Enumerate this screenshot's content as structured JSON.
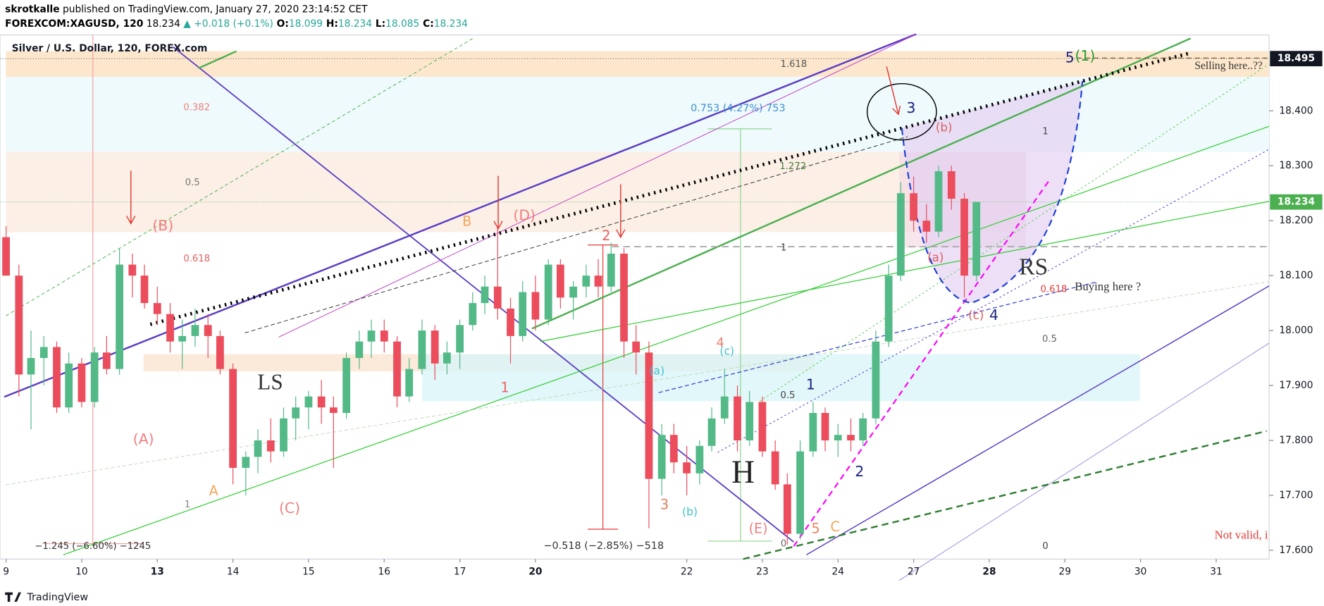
{
  "header": {
    "author": "skrotkalle",
    "published": " published on TradingView.com, January 27, 2020 23:14:52 CET",
    "symbol": "FOREXCOM:XAGUSD, 120",
    "last": " 18.234",
    "change": " ▲ +0.018 (+0.1%)",
    "ohlc": [
      {
        "label": " O:",
        "value": "18.099"
      },
      {
        "label": " H:",
        "value": "18.234"
      },
      {
        "label": " L:",
        "value": "18.085"
      },
      {
        "label": " C:",
        "value": "18.234"
      }
    ]
  },
  "chart_data": {
    "type": "candlestick",
    "title": "Silver / U.S. Dollar, 120, FOREX.com",
    "up_color": "#53b987",
    "down_color": "#eb4d5c",
    "x": [
      0,
      0.17,
      0.33,
      0.5,
      0.67,
      0.83,
      1,
      1.17,
      1.33,
      1.5,
      1.67,
      1.83,
      2,
      2.17,
      2.33,
      2.5,
      2.67,
      2.83,
      3,
      3.17,
      3.33,
      3.5,
      3.67,
      3.83,
      4,
      4.17,
      4.33,
      4.5,
      4.67,
      4.83,
      5,
      5.17,
      5.33,
      5.5,
      5.67,
      5.83,
      6,
      6.17,
      6.33,
      6.5,
      6.67,
      6.83,
      7,
      7.17,
      7.33,
      7.5,
      7.67,
      7.83,
      8,
      8.17,
      8.33,
      8.5,
      8.67,
      8.83,
      9,
      9.17,
      9.33,
      9.5,
      9.67,
      9.83,
      10,
      10.17,
      10.33,
      10.5,
      10.67,
      10.83,
      11,
      11.17,
      11.33,
      11.5,
      11.67,
      11.83,
      12,
      12.17,
      12.33,
      12.5,
      12.67,
      12.83
    ],
    "open": [
      18.17,
      18.1,
      17.92,
      17.95,
      17.97,
      17.86,
      17.94,
      17.87,
      17.96,
      17.93,
      18.12,
      18.1,
      18.05,
      18.03,
      17.98,
      17.99,
      18.01,
      17.99,
      17.93,
      17.75,
      17.77,
      17.8,
      17.78,
      17.84,
      17.86,
      17.88,
      17.86,
      17.85,
      17.95,
      17.98,
      18.0,
      17.98,
      17.88,
      17.93,
      18.0,
      17.94,
      17.96,
      18.01,
      18.05,
      18.08,
      18.04,
      17.99,
      18.07,
      18.02,
      18.12,
      18.06,
      18.08,
      18.1,
      18.08,
      18.14,
      17.98,
      17.96,
      17.73,
      17.81,
      17.76,
      17.74,
      17.79,
      17.84,
      17.88,
      17.8,
      17.87,
      17.78,
      17.72,
      17.63,
      17.78,
      17.85,
      17.8,
      17.81,
      17.8,
      17.84,
      17.98,
      18.1,
      18.25,
      18.2,
      18.18,
      18.29,
      18.24,
      18.1
    ],
    "high": [
      18.19,
      18.12,
      18.0,
      17.99,
      17.98,
      17.96,
      17.95,
      17.97,
      17.99,
      18.15,
      18.14,
      18.12,
      18.08,
      18.05,
      18.02,
      18.04,
      18.03,
      18.0,
      17.94,
      17.78,
      17.82,
      17.84,
      17.86,
      17.88,
      17.89,
      17.91,
      17.88,
      17.96,
      18.0,
      18.02,
      18.02,
      17.99,
      17.95,
      18.02,
      18.01,
      17.98,
      18.02,
      18.07,
      18.1,
      18.19,
      18.06,
      18.09,
      18.1,
      18.13,
      18.13,
      18.09,
      18.12,
      18.13,
      18.16,
      18.15,
      18.01,
      17.98,
      17.83,
      17.83,
      17.79,
      17.8,
      17.86,
      17.93,
      17.9,
      17.89,
      17.88,
      17.8,
      17.74,
      17.8,
      17.87,
      17.86,
      17.83,
      17.84,
      17.85,
      18.0,
      18.12,
      18.27,
      18.28,
      18.23,
      18.3,
      18.3,
      18.25,
      18.234
    ],
    "low": [
      18.1,
      17.88,
      17.82,
      17.9,
      17.85,
      17.85,
      17.86,
      17.86,
      17.92,
      17.92,
      18.06,
      18.04,
      18.01,
      17.96,
      17.93,
      17.97,
      17.95,
      17.92,
      17.72,
      17.7,
      17.74,
      17.76,
      17.77,
      17.8,
      17.82,
      17.83,
      17.75,
      17.84,
      17.93,
      17.95,
      17.96,
      17.86,
      17.87,
      17.92,
      17.91,
      17.92,
      17.93,
      18.0,
      18.03,
      18.02,
      17.94,
      17.98,
      18.0,
      18.01,
      18.04,
      18.02,
      18.06,
      18.06,
      18.07,
      17.95,
      17.92,
      17.64,
      17.7,
      17.74,
      17.7,
      17.72,
      17.78,
      17.83,
      17.78,
      17.79,
      17.77,
      17.71,
      17.61,
      17.62,
      17.77,
      17.78,
      17.77,
      17.78,
      17.79,
      17.83,
      17.97,
      18.09,
      18.18,
      18.16,
      18.17,
      18.22,
      18.06,
      18.09
    ],
    "close": [
      18.1,
      17.92,
      17.95,
      17.97,
      17.86,
      17.94,
      17.87,
      17.96,
      17.93,
      18.12,
      18.1,
      18.05,
      18.03,
      17.98,
      17.99,
      18.01,
      17.99,
      17.93,
      17.75,
      17.77,
      17.8,
      17.78,
      17.84,
      17.86,
      17.88,
      17.86,
      17.85,
      17.95,
      17.98,
      18.0,
      17.98,
      17.88,
      17.93,
      18.0,
      17.94,
      17.96,
      18.01,
      18.05,
      18.08,
      18.04,
      17.99,
      18.07,
      18.02,
      18.12,
      18.06,
      18.08,
      18.1,
      18.08,
      18.14,
      17.98,
      17.96,
      17.73,
      17.81,
      17.76,
      17.74,
      17.79,
      17.84,
      17.88,
      17.8,
      17.87,
      17.78,
      17.72,
      17.63,
      17.78,
      17.85,
      17.8,
      17.81,
      17.8,
      17.84,
      17.98,
      18.1,
      18.25,
      18.2,
      18.18,
      18.29,
      18.24,
      18.1,
      18.234
    ],
    "xlim": [
      -0.08,
      16.7
    ],
    "xticks": [
      {
        "value": 0,
        "label": "9"
      },
      {
        "value": 1,
        "label": "10"
      },
      {
        "value": 2,
        "label": "13"
      },
      {
        "value": 3,
        "label": "14"
      },
      {
        "value": 4,
        "label": "15"
      },
      {
        "value": 5,
        "label": "16"
      },
      {
        "value": 6,
        "label": "17"
      },
      {
        "value": 7,
        "label": "20"
      },
      {
        "value": 9,
        "label": "22"
      },
      {
        "value": 10,
        "label": "23"
      },
      {
        "value": 11,
        "label": "24"
      },
      {
        "value": 12,
        "label": "27"
      },
      {
        "value": 13,
        "label": "28"
      },
      {
        "value": 14,
        "label": "29"
      },
      {
        "value": 15,
        "label": "30"
      },
      {
        "value": 16,
        "label": "31"
      }
    ],
    "ylim": [
      17.584,
      18.538
    ],
    "yticks": [
      {
        "value": 17.6,
        "label": "17.600"
      },
      {
        "value": 17.7,
        "label": "17.700"
      },
      {
        "value": 17.8,
        "label": "17.800"
      },
      {
        "value": 17.9,
        "label": "17.900"
      },
      {
        "value": 18,
        "label": "18.000"
      },
      {
        "value": 18.1,
        "label": "18.100"
      },
      {
        "value": 18.2,
        "label": "18.200"
      },
      {
        "value": 18.3,
        "label": "18.300"
      },
      {
        "value": 18.4,
        "label": "18.400"
      }
    ],
    "price_tags": [
      {
        "value": 18.495,
        "label": "18.495",
        "color": "#131722"
      },
      {
        "value": 18.234,
        "label": "18.234",
        "color": "#4caf50"
      }
    ]
  },
  "annotations": [
    "(B)",
    "(D)",
    "B",
    "2",
    "LS",
    "1",
    "(A)",
    "A",
    "(C)",
    "H",
    "4",
    "(c)",
    "(a)",
    "(b)",
    "3",
    "(E)",
    "5",
    "C",
    "0",
    "1",
    "2",
    "3",
    "(b)",
    "(a)",
    "(c)",
    "4",
    "RS",
    "5",
    "(1)",
    "Selling here..??",
    "Buying here ?",
    "Not valid, i",
    "1.618",
    "0.382",
    "0.5",
    "0.618",
    "1",
    "1.272",
    "1",
    "1",
    "0.618",
    "0.5",
    "0.5",
    "0",
    "0.753 (4.27%) 753",
    "−0.518 (−2.85%) −518",
    "−1.245 (−6.60%) −1245"
  ],
  "footer": "TradingView"
}
